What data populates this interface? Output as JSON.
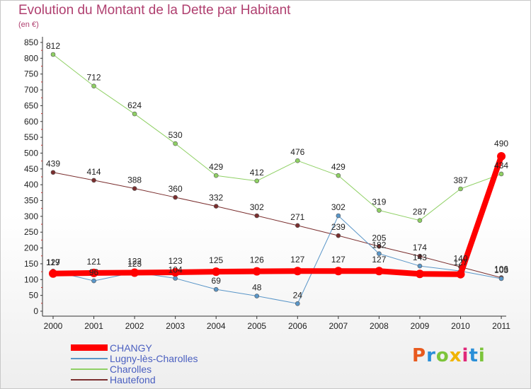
{
  "page": {
    "title": "Evolution du Montant de la Dette par Habitant",
    "subtitle": "(en €)",
    "logo": "Proxiti"
  },
  "chart_data": {
    "type": "line",
    "title": "Evolution du Montant de la Dette par Habitant",
    "subtitle": "(en €)",
    "categories": [
      "2000",
      "2001",
      "2002",
      "2003",
      "2004",
      "2005",
      "2006",
      "2007",
      "2008",
      "2009",
      "2010",
      "2011"
    ],
    "ylim": [
      0,
      850
    ],
    "yticks": [
      0,
      50,
      100,
      150,
      200,
      250,
      300,
      350,
      400,
      450,
      500,
      550,
      600,
      650,
      700,
      750,
      800,
      850
    ],
    "grid": false,
    "legend_position": "bottom-left",
    "series": [
      {
        "name": "CHANGY",
        "color": "#ff0000",
        "width": 8,
        "marker": 6,
        "values": [
          119,
          121,
          122,
          123,
          125,
          126,
          127,
          127,
          127,
          118,
          117,
          490
        ],
        "labels": [
          "119",
          "121",
          "122",
          "123",
          "125",
          "126",
          "127",
          "127",
          "127",
          "",
          "",
          ""
        ]
      },
      {
        "name": "Lugny-lès-Charolles",
        "color": "#5a96c8",
        "width": 1,
        "marker": 3,
        "values": [
          127,
          96,
          123,
          104,
          69,
          48,
          24,
          302,
          182,
          143,
          127,
          103
        ],
        "labels": [
          "127",
          "96",
          "123",
          "104",
          "69",
          "48",
          "24",
          "302",
          "182",
          "143",
          "127",
          "103"
        ]
      },
      {
        "name": "Charolles",
        "color": "#8fd064",
        "width": 1,
        "marker": 3,
        "values": [
          812,
          712,
          624,
          530,
          429,
          412,
          476,
          429,
          319,
          287,
          387,
          434
        ],
        "labels": [
          "812",
          "712",
          "624",
          "530",
          "429",
          "412",
          "476",
          "429",
          "319",
          "287",
          "387",
          "434"
        ]
      },
      {
        "name": "Hautefond",
        "color": "#7a2e2e",
        "width": 1,
        "marker": 3,
        "values": [
          439,
          414,
          388,
          360,
          332,
          302,
          271,
          239,
          205,
          174,
          140,
          106
        ],
        "labels": [
          "439",
          "414",
          "388",
          "360",
          "332",
          "302",
          "271",
          "239",
          "205",
          "174",
          "140",
          "106"
        ]
      }
    ]
  },
  "colors": {
    "title": "#b04070",
    "legend_text": "#4a5fc0"
  }
}
